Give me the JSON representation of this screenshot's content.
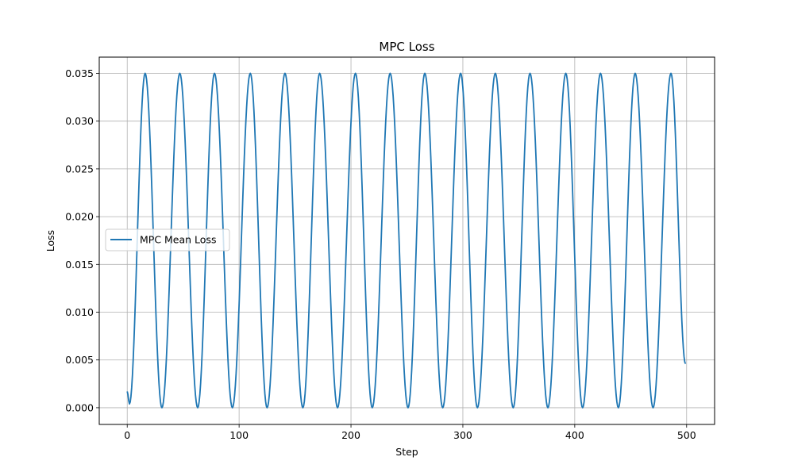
{
  "chart_data": {
    "type": "line",
    "title": "MPC Loss",
    "xlabel": "Step",
    "ylabel": "Loss",
    "xlim": [
      -25,
      525
    ],
    "ylim": [
      -0.00175,
      0.0367
    ],
    "x_ticks": [
      0,
      100,
      200,
      300,
      400,
      500
    ],
    "x_tick_labels": [
      "0",
      "100",
      "200",
      "300",
      "400",
      "500"
    ],
    "y_ticks": [
      0.0,
      0.005,
      0.01,
      0.015,
      0.02,
      0.025,
      0.03,
      0.035
    ],
    "y_tick_labels": [
      "0.000",
      "0.005",
      "0.010",
      "0.015",
      "0.020",
      "0.025",
      "0.030",
      "0.035"
    ],
    "grid": true,
    "legend_placement": "center-left",
    "series": [
      {
        "name": "MPC Mean Loss",
        "color": "#1f77b4",
        "x": [
          0,
          2,
          16,
          31,
          47,
          63,
          78,
          94,
          110,
          125,
          141,
          157,
          172,
          188,
          204,
          219,
          235,
          251,
          266,
          282,
          298,
          313,
          329,
          345,
          360,
          376,
          392,
          407,
          423,
          439,
          454,
          470,
          486,
          499
        ],
        "y": [
          0.0017,
          0.0004,
          0.035,
          0.0,
          0.035,
          0.0,
          0.035,
          0.0,
          0.035,
          0.0,
          0.035,
          0.0,
          0.035,
          0.0,
          0.035,
          0.0,
          0.035,
          0.0,
          0.035,
          0.0,
          0.035,
          0.0,
          0.035,
          0.0,
          0.035,
          0.0,
          0.035,
          0.0,
          0.035,
          0.0,
          0.035,
          0.0,
          0.035,
          0.0046
        ]
      }
    ]
  }
}
